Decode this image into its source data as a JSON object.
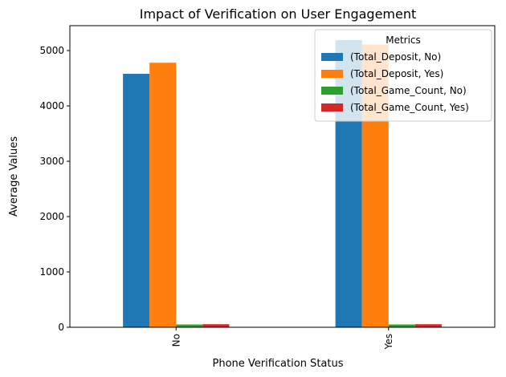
{
  "chart_data": {
    "type": "bar",
    "title": "Impact of Verification on User Engagement",
    "xlabel": "Phone Verification Status",
    "ylabel": "Average Values",
    "categories": [
      "No",
      "Yes"
    ],
    "ylim": [
      0,
      5450
    ],
    "yticks": [
      0,
      1000,
      2000,
      3000,
      4000,
      5000
    ],
    "grid": false,
    "legend": {
      "title": "Metrics",
      "placement": "top-right"
    },
    "series": [
      {
        "name": "(Total_Deposit, No)",
        "color": "#1f77b4",
        "values": [
          4580,
          5190
        ]
      },
      {
        "name": "(Total_Deposit, Yes)",
        "color": "#ff7f0e",
        "values": [
          4780,
          5110
        ]
      },
      {
        "name": "(Total_Game_Count, No)",
        "color": "#2ca02c",
        "values": [
          50,
          50
        ]
      },
      {
        "name": "(Total_Game_Count, Yes)",
        "color": "#d62728",
        "values": [
          55,
          55
        ]
      }
    ]
  }
}
